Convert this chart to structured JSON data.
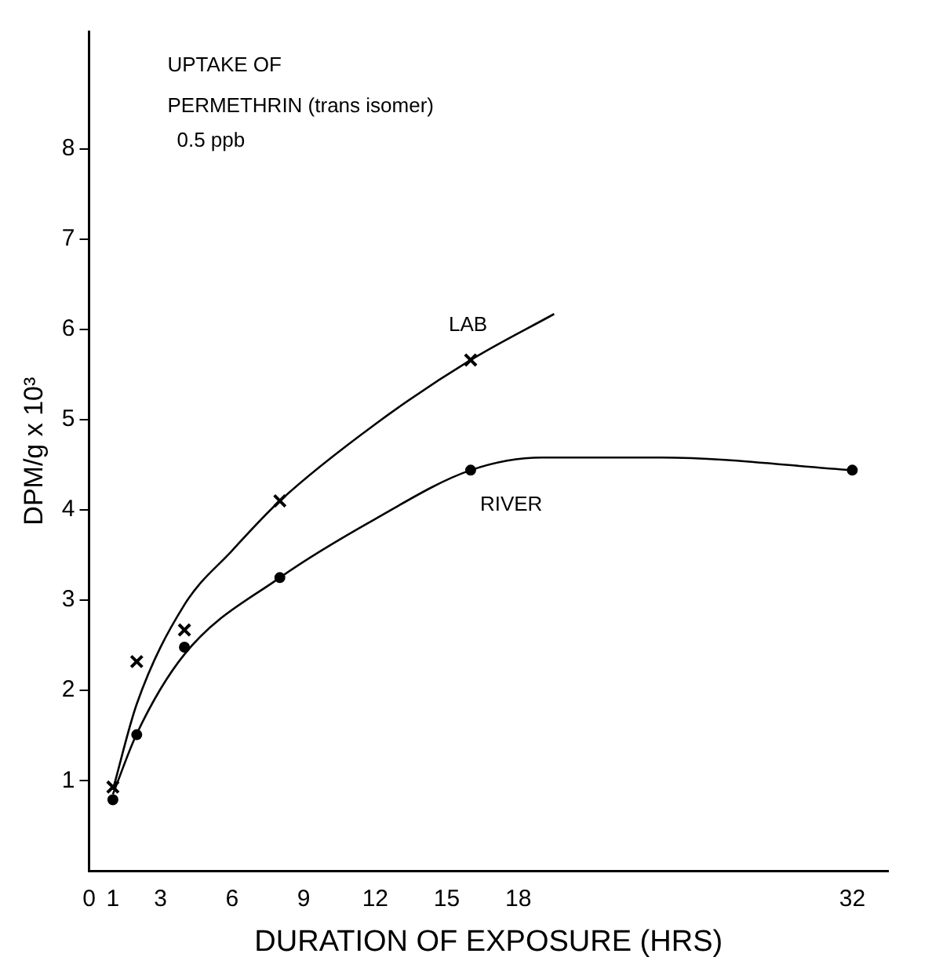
{
  "chart_data": {
    "type": "scatter",
    "title": "UPTAKE OF PERMETHRIN (trans isomer)",
    "subtitle": "0.5 ppb",
    "xlabel": "DURATION OF EXPOSURE (HRS)",
    "ylabel": "DPM/g x 10³",
    "xlim": [
      0,
      33.5
    ],
    "xticks": [
      0,
      1,
      3,
      6,
      9,
      12,
      15,
      18,
      32
    ],
    "ylim": [
      0,
      9.3
    ],
    "yticks": [
      1,
      2,
      3,
      4,
      5,
      6,
      7,
      8
    ],
    "grid": false,
    "legend": false,
    "series": [
      {
        "name": "LAB",
        "marker": "cross",
        "color": "#000000",
        "x": [
          1,
          2,
          4,
          8,
          16
        ],
        "values": [
          0.93,
          2.32,
          2.67,
          4.1,
          5.66
        ]
      },
      {
        "name": "RIVER",
        "marker": "circle",
        "color": "#000000",
        "x": [
          1,
          2,
          4,
          8,
          16,
          32
        ],
        "values": [
          0.79,
          1.51,
          2.48,
          3.25,
          4.44,
          4.44
        ]
      },
      {
        "type": "line",
        "marker": "none",
        "color": "#000000",
        "x": [
          1,
          2,
          4,
          6,
          8,
          12,
          16,
          19.5
        ],
        "values": [
          0.9,
          1.85,
          2.95,
          3.55,
          4.1,
          4.95,
          5.66,
          6.17
        ]
      },
      {
        "type": "line",
        "marker": "none",
        "color": "#000000",
        "x": [
          1,
          2,
          4,
          8,
          12,
          16,
          19,
          24,
          32
        ],
        "values": [
          0.85,
          1.52,
          2.4,
          3.25,
          3.9,
          4.44,
          4.58,
          4.58,
          4.44
        ]
      }
    ]
  }
}
